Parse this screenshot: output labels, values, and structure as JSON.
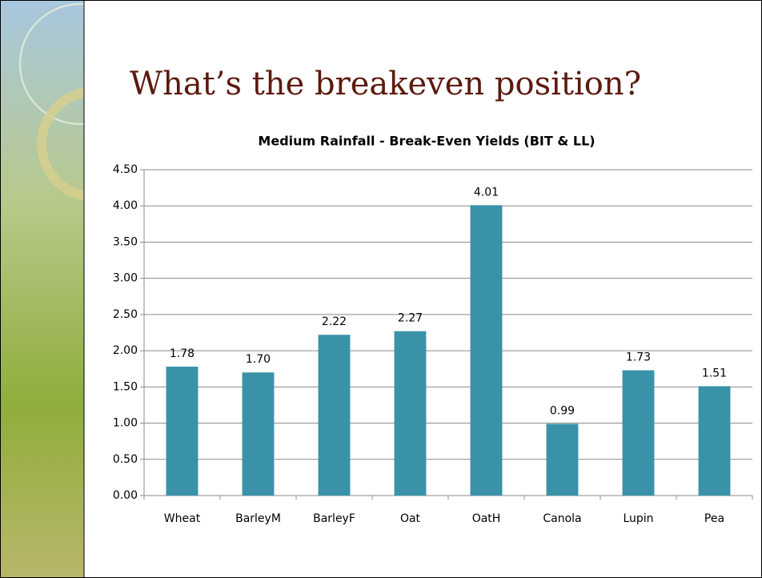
{
  "slide": {
    "title": "What’s the breakeven position?"
  },
  "chart_data": {
    "type": "bar",
    "title": "Medium Rainfall - Break-Even Yields (BIT & LL)",
    "categories": [
      "Wheat",
      "BarleyM",
      "BarleyF",
      "Oat",
      "OatH",
      "Canola",
      "Lupin",
      "Pea"
    ],
    "values": [
      1.78,
      1.7,
      2.22,
      2.27,
      4.01,
      0.99,
      1.73,
      1.51
    ],
    "value_labels": [
      "1.78",
      "1.70",
      "2.22",
      "2.27",
      "4.01",
      "0.99",
      "1.73",
      "1.51"
    ],
    "color": "#3a92a8",
    "ylim": [
      0,
      4.5
    ],
    "yticks": [
      {
        "value": 0,
        "label": "0.00"
      },
      {
        "value": 0.5,
        "label": "0.50"
      },
      {
        "value": 1,
        "label": "1.00"
      },
      {
        "value": 1.5,
        "label": "1.50"
      },
      {
        "value": 2,
        "label": "2.00"
      },
      {
        "value": 2.5,
        "label": "2.50"
      },
      {
        "value": 3,
        "label": "3.00"
      },
      {
        "value": 3.5,
        "label": "3.50"
      },
      {
        "value": 4,
        "label": "4.00"
      },
      {
        "value": 4.5,
        "label": "4.50"
      }
    ],
    "grid": true
  }
}
